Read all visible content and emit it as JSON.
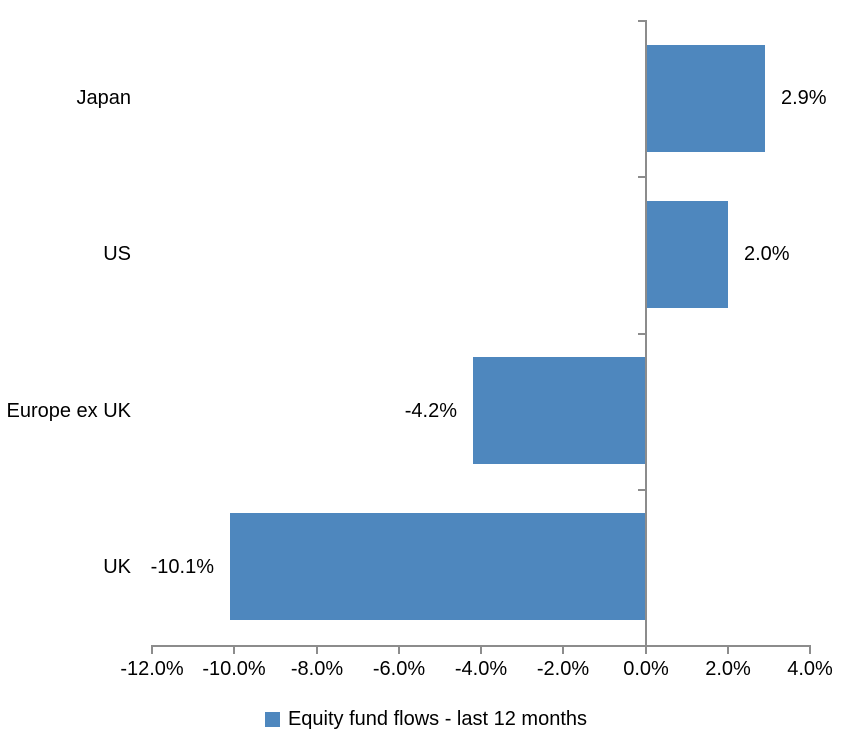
{
  "chart_data": {
    "type": "bar",
    "orientation": "horizontal",
    "title": "",
    "xlabel": "",
    "ylabel": "",
    "categories": [
      "Japan",
      "US",
      "Europe ex UK",
      "UK"
    ],
    "series": [
      {
        "name": "Equity fund flows - last 12 months",
        "values": [
          2.9,
          2.0,
          -4.2,
          -10.1
        ]
      }
    ],
    "data_labels": [
      "2.9%",
      "2.0%",
      "-4.2%",
      "-10.1%"
    ],
    "xlim": [
      -12,
      4
    ],
    "x_tick_step": 2,
    "x_tick_labels": [
      "-12.0%",
      "-10.0%",
      "-8.0%",
      "-6.0%",
      "-4.0%",
      "-2.0%",
      "0.0%",
      "2.0%",
      "4.0%"
    ],
    "grid": false,
    "legend": {
      "position": "bottom",
      "entries": [
        "Equity fund flows - last 12 months"
      ]
    },
    "colors": {
      "bar": "#4E87BE",
      "axis": "#8C8C8C",
      "text": "#000000",
      "background": "#FFFFFF"
    }
  }
}
